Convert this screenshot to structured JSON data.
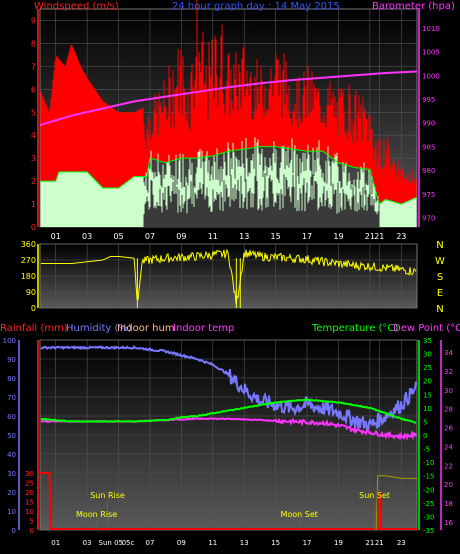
{
  "colors": {
    "windspeed_title": "#ff2020",
    "gust_fill": "#ff0000",
    "avg_fill": "#ccffcc",
    "baro": "#ff33ff",
    "winddir": "#ffff00",
    "rain": "#ff0000",
    "humidity": "#7777ff",
    "indoor_hum": "#ffbb88",
    "indoor_temp": "#ff33ff",
    "temperature": "#00ff00",
    "dewpoint": "#ff33ff",
    "axis_white": "#ffffff",
    "grid": "#555555",
    "sun": "#ffff00",
    "moon": "#ffff00"
  },
  "chart_data": [
    {
      "type": "area",
      "title": "24 hour graph day : 14 May 2015",
      "legend": [
        "Windspeed (m/s)",
        "Barometer (hpa)"
      ],
      "x_ticks": [
        "01",
        "03",
        "05",
        "07",
        "09",
        "11",
        "13",
        "15",
        "17",
        "19",
        "21",
        "21",
        "23"
      ],
      "left_ticks": [
        "9",
        "8",
        "7",
        "6",
        "5",
        "4",
        "3",
        "2",
        "1",
        "0"
      ],
      "right_ticks": [
        "1010",
        "1005",
        "1000",
        "995",
        "990",
        "985",
        "980",
        "975",
        "970"
      ],
      "ylim_left": [
        0,
        9.5
      ],
      "ylim_right": [
        968,
        1014
      ],
      "x_range": [
        0,
        24
      ],
      "series": [
        {
          "name": "Windspeed (m/s)",
          "x": [
            0,
            0.6,
            1,
            1.6,
            2,
            2.6,
            3,
            3.5,
            4,
            5,
            6,
            6.6,
            7,
            7.5,
            8,
            8.5,
            9,
            9.5,
            10,
            10.5,
            11,
            11.5,
            12,
            12.5,
            13,
            13.5,
            14,
            14.5,
            15,
            15.5,
            16,
            16.5,
            17,
            17.5,
            18,
            18.5,
            19,
            19.5,
            20,
            20.5,
            21,
            21.6,
            22,
            22.5,
            23,
            23.5,
            24
          ],
          "values": [
            6,
            5,
            7.5,
            7,
            8,
            7,
            6.5,
            6,
            5.5,
            5,
            5,
            5.2,
            5,
            5.5,
            6,
            7,
            7.5,
            6,
            9.6,
            7,
            7.5,
            8.5,
            7,
            7,
            7.5,
            7,
            6.5,
            7,
            7.5,
            7,
            6.5,
            6,
            6.5,
            6.2,
            5.8,
            6,
            5.5,
            6,
            5.5,
            5.3,
            5,
            3.5,
            4,
            3.2,
            2.8,
            2.5,
            2.3
          ]
        },
        {
          "name": "avg",
          "x": [
            0,
            1,
            1.2,
            3,
            4,
            5,
            6,
            6.8,
            7,
            8,
            9,
            10,
            11,
            12,
            13,
            14,
            15,
            16,
            17,
            18,
            19,
            20,
            21,
            21.6,
            22,
            23,
            24
          ],
          "values": [
            2,
            2,
            2.4,
            2.4,
            1.7,
            1.7,
            2.2,
            2.2,
            3,
            2.8,
            3,
            3,
            3.1,
            3.3,
            3.4,
            3.5,
            3.5,
            3.4,
            3.3,
            3.3,
            2.8,
            2.6,
            2.5,
            1,
            1.2,
            1,
            1.3
          ]
        },
        {
          "name": "Barometer (hpa)",
          "x": [
            0,
            2,
            4,
            6,
            8,
            10,
            12,
            14,
            16,
            18,
            20,
            22,
            24
          ],
          "values": [
            989.5,
            991.5,
            993,
            994.5,
            995.5,
            996.5,
            997.5,
            998.3,
            999,
            999.5,
            1000,
            1000.5,
            1000.8
          ]
        }
      ]
    },
    {
      "type": "line",
      "legend": [
        "N",
        "W",
        "S",
        "E",
        "N"
      ],
      "left_ticks": [
        "360",
        "270",
        "180",
        "90",
        "0"
      ],
      "ylim": [
        0,
        360
      ],
      "x_range": [
        0,
        24
      ],
      "series": [
        {
          "name": "Wind direction",
          "x": [
            0,
            1,
            2,
            3,
            4,
            4.5,
            5,
            6,
            6.2,
            6.5,
            7,
            8,
            9,
            10,
            11,
            12,
            12.5,
            13,
            13.5,
            14,
            15,
            16,
            17,
            18,
            19,
            20,
            21,
            22,
            23,
            24
          ],
          "values": [
            250,
            250,
            250,
            260,
            270,
            290,
            290,
            280,
            15,
            260,
            270,
            280,
            285,
            290,
            300,
            305,
            20,
            310,
            300,
            290,
            285,
            280,
            275,
            260,
            250,
            240,
            235,
            225,
            215,
            205
          ]
        }
      ]
    },
    {
      "type": "line",
      "legend": [
        "Rainfall (mm)",
        "Humidity (%)",
        "Indoor hum",
        "Indoor temp",
        "Temperature (°C)",
        "Dew Point (°C)"
      ],
      "x_ticks": [
        "01",
        "03",
        "Sun",
        "05",
        "05c",
        "07",
        "09",
        "11",
        "13",
        "15",
        "17",
        "19",
        "21",
        "21",
        "23"
      ],
      "humidity_ticks": [
        "100",
        "90",
        "80",
        "70",
        "60",
        "50",
        "40",
        "30",
        "20",
        "10",
        "0"
      ],
      "rain_ticks": [
        "30",
        "25",
        "20",
        "15",
        "10",
        "5",
        "0"
      ],
      "temp_ticks": [
        "35",
        "30",
        "25",
        "20",
        "15",
        "10",
        "5",
        "0",
        "-5",
        "-10",
        "-15",
        "-20",
        "-25",
        "-30",
        "-35"
      ],
      "indoor_ticks": [
        "34",
        "32",
        "30",
        "28",
        "26",
        "24",
        "22",
        "20",
        "18",
        "16"
      ],
      "annotations": [
        "Sun Rise",
        "Moon Rise",
        "Moon Set",
        "Sun Set"
      ],
      "ylim_humidity": [
        0,
        100
      ],
      "ylim_temp": [
        -35,
        35
      ],
      "x_range": [
        0,
        24
      ],
      "series": [
        {
          "name": "Humidity (%)",
          "x": [
            0,
            2,
            4,
            6,
            7,
            8,
            9,
            10,
            11,
            12,
            13,
            14,
            15,
            16,
            17,
            18,
            19,
            20,
            21,
            22,
            23,
            24
          ],
          "values": [
            96,
            96,
            96,
            96,
            95,
            94,
            92,
            90,
            87,
            82,
            74,
            68,
            66,
            64,
            66,
            64,
            62,
            58,
            55,
            60,
            66,
            75
          ]
        },
        {
          "name": "Temperature (°C)",
          "x": [
            0,
            2,
            4,
            6,
            8,
            9,
            10,
            11,
            12,
            13,
            14,
            15,
            16,
            17,
            18,
            19,
            20,
            21,
            22,
            23,
            24
          ],
          "values": [
            6,
            5,
            5,
            5,
            5.5,
            6.5,
            7,
            8,
            9,
            10,
            11,
            12,
            12.5,
            13,
            12.5,
            12,
            11,
            10,
            8,
            6,
            4.5
          ]
        },
        {
          "name": "Dew Point (°C)",
          "x": [
            0,
            2,
            4,
            6,
            8,
            10,
            12,
            14,
            16,
            18,
            19,
            20,
            21,
            22,
            23,
            24
          ],
          "values": [
            5,
            5,
            5,
            5,
            5.5,
            6,
            6,
            5.5,
            5,
            4.5,
            3.5,
            2,
            1,
            0,
            -0.5,
            0
          ]
        },
        {
          "name": "Rainfall (mm)",
          "x": [
            0,
            0.6,
            0.7,
            21.4,
            21.5,
            24
          ],
          "values": [
            30,
            30,
            0.5,
            0.5,
            0.5,
            0.5
          ]
        },
        {
          "name": "Indoor temp",
          "x": [
            21.4,
            21.5,
            22,
            23,
            24
          ],
          "values": [
            -35,
            -15,
            -15,
            -16,
            -16
          ]
        }
      ]
    }
  ]
}
